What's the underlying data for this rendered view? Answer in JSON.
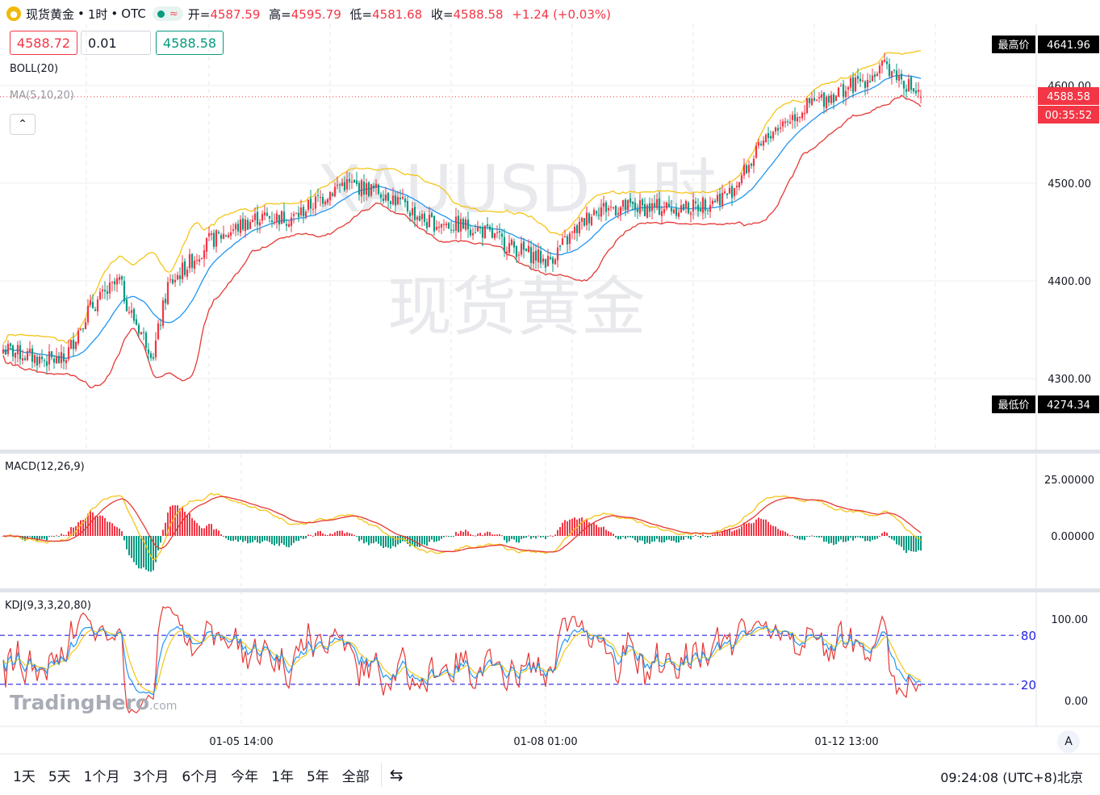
{
  "header": {
    "symbol_name": "现货黄金",
    "interval": "1时",
    "exchange": "OTC",
    "open_label": "开=",
    "open": "4587.59",
    "high_label": "高=",
    "high": "4595.79",
    "low_label": "低=",
    "low": "4581.68",
    "close_label": "收=",
    "close": "4588.58",
    "change": "+1.24 (+0.03%)"
  },
  "trade": {
    "sell_price": "4588.72",
    "quantity": "0.01",
    "buy_price": "4588.58"
  },
  "indicators": {
    "boll": "BOLL(20)",
    "ma": "MA(5,10,20)",
    "macd": "MACD(12,26,9)",
    "kdj": "KDJ(9,3,3,20,80)"
  },
  "watermark": {
    "line1": "XAUUSD,1时",
    "line2": "现货黄金",
    "brand": "TradingHero",
    "brand_suffix": ".com"
  },
  "price_labels": {
    "highest_label": "最高价",
    "highest_value": "4641.96",
    "lowest_label": "最低价",
    "lowest_value": "4274.34",
    "current": "4588.58",
    "countdown": "00:35:52"
  },
  "bottom_bar": {
    "ranges": [
      "1天",
      "5天",
      "1个月",
      "3个月",
      "6个月",
      "今年",
      "1年",
      "5年",
      "全部"
    ],
    "time": "09:24:08",
    "timezone": "(UTC+8)北京",
    "auto_label": "A"
  },
  "colors": {
    "up": "#f23645",
    "down": "#089981",
    "boll_upper": "#f5c518",
    "boll_lower": "#e53935",
    "boll_mid": "#2196f3"
  },
  "chart_data": [
    {
      "type": "candlestick",
      "symbol": "XAUUSD",
      "interval": "1h",
      "y_ticks": [
        4300,
        4400,
        4500,
        4600
      ],
      "y_tick_labels": [
        "4300.00",
        "4400.00",
        "4500.00",
        "4600.00"
      ],
      "x_tick_labels": [
        "01-05 14:00",
        "01-08 01:00",
        "01-12 13:00"
      ],
      "ylim": [
        4240,
        4680
      ],
      "overlays": [
        "BOLL(20)",
        "MA(5,10,20)"
      ],
      "key_points": [
        {
          "x": 0,
          "close": 4330
        },
        {
          "x": 15,
          "close": 4320
        },
        {
          "x": 25,
          "close": 4318
        },
        {
          "x": 35,
          "close": 4370
        },
        {
          "x": 48,
          "close": 4400
        },
        {
          "x": 52,
          "close": 4370
        },
        {
          "x": 62,
          "close": 4325
        },
        {
          "x": 68,
          "close": 4395
        },
        {
          "x": 85,
          "close": 4440
        },
        {
          "x": 105,
          "close": 4465
        },
        {
          "x": 120,
          "close": 4465
        },
        {
          "x": 140,
          "close": 4500
        },
        {
          "x": 158,
          "close": 4490
        },
        {
          "x": 175,
          "close": 4460
        },
        {
          "x": 195,
          "close": 4455
        },
        {
          "x": 210,
          "close": 4435
        },
        {
          "x": 225,
          "close": 4420
        },
        {
          "x": 245,
          "close": 4475
        },
        {
          "x": 265,
          "close": 4475
        },
        {
          "x": 285,
          "close": 4475
        },
        {
          "x": 300,
          "close": 4490
        },
        {
          "x": 318,
          "close": 4555
        },
        {
          "x": 333,
          "close": 4580
        },
        {
          "x": 355,
          "close": 4605
        },
        {
          "x": 365,
          "close": 4620
        },
        {
          "x": 379,
          "close": 4588.58
        }
      ]
    },
    {
      "type": "bar+line",
      "name": "MACD(12,26,9)",
      "y_ticks": [
        0,
        25
      ],
      "y_tick_labels": [
        "0.00000",
        "25.00000"
      ],
      "ylim": [
        -18,
        33
      ]
    },
    {
      "type": "line",
      "name": "KDJ(9,3,3,20,80)",
      "y_ticks": [
        0,
        100
      ],
      "y_tick_labels": [
        "0.00",
        "100.00"
      ],
      "levels": [
        {
          "value": 80,
          "label": "80"
        },
        {
          "value": 20,
          "label": "20"
        }
      ],
      "ylim": [
        -15,
        115
      ]
    }
  ]
}
